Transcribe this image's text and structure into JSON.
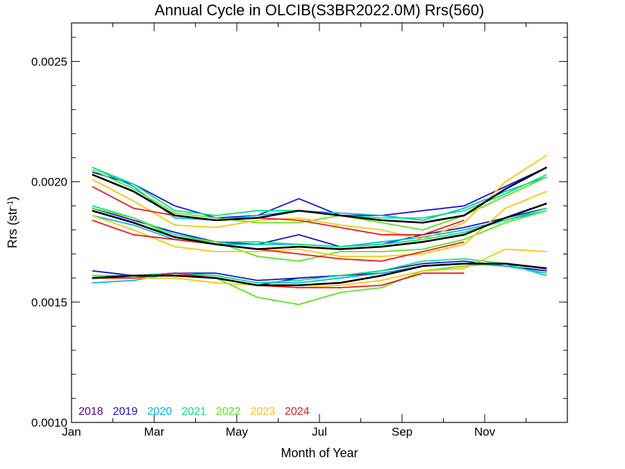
{
  "chart_data": {
    "type": "line",
    "title": "Annual Cycle in OLCIB(S3BR2022.0M) Rrs(560)",
    "xlabel": "Month of Year",
    "ylabel_main": "Rrs (str",
    "ylabel_sup": "-1",
    "ylabel_end": ")",
    "xlim": [
      0,
      12
    ],
    "ylim": [
      0.001,
      0.00266
    ],
    "x_ticks": [
      {
        "x": 0,
        "label": "Jan"
      },
      {
        "x": 2,
        "label": "Mar"
      },
      {
        "x": 4,
        "label": "May"
      },
      {
        "x": 6,
        "label": "Jul"
      },
      {
        "x": 8,
        "label": "Sep"
      },
      {
        "x": 10,
        "label": "Nov"
      }
    ],
    "y_ticks": [
      {
        "y": 0.001,
        "label": "0.0010"
      },
      {
        "y": 0.0015,
        "label": "0.0015"
      },
      {
        "y": 0.002,
        "label": "0.0020"
      },
      {
        "y": 0.0025,
        "label": "0.0025"
      }
    ],
    "legend_position": "bottom-left",
    "x": [
      0.5,
      1.5,
      2.5,
      3.5,
      4.5,
      5.5,
      6.5,
      7.5,
      8.5,
      9.5,
      10.5,
      11.5
    ],
    "series": [
      {
        "name": "2018",
        "color": "#5a0080",
        "groups": [
          [
            0.0016,
            0.00161,
            0.00162,
            0.0016,
            0.00157,
            0.0016,
            0.00161,
            0.00162,
            0.00165,
            0.00166,
            0.00165,
            0.00163
          ]
        ]
      },
      {
        "name": "2019",
        "color": "#1010e0",
        "groups": [
          [
            0.00204,
            0.00199,
            0.0019,
            0.00185,
            0.00186,
            0.00193,
            0.00186,
            0.00186,
            0.00188,
            0.0019,
            0.00198,
            0.00206
          ],
          [
            0.00189,
            0.00184,
            0.00179,
            0.00175,
            0.00174,
            0.00178,
            0.00173,
            0.00174,
            0.00178,
            0.00181,
            0.00185,
            0.00189
          ],
          [
            0.00163,
            0.00161,
            0.00162,
            0.00162,
            0.00159,
            0.0016,
            0.00161,
            0.00163,
            0.00166,
            0.00167,
            0.00165,
            0.00163
          ]
        ]
      },
      {
        "name": "2020",
        "color": "#00b4e6",
        "groups": [
          [
            0.00206,
            0.00198,
            0.00185,
            0.00184,
            0.00186,
            0.00188,
            0.00187,
            0.00186,
            0.00184,
            0.00189,
            0.00196,
            0.00202
          ],
          [
            0.00186,
            0.00182,
            0.00176,
            0.00174,
            0.00174,
            0.00174,
            0.00173,
            0.00175,
            0.00177,
            0.0018,
            0.00184,
            0.00188
          ],
          [
            0.00158,
            0.00159,
            0.00162,
            0.00161,
            0.00158,
            0.00158,
            0.0016,
            0.00162,
            0.00165,
            0.00166,
            0.00165,
            0.00162
          ]
        ]
      },
      {
        "name": "2021",
        "color": "#00e676",
        "groups": [
          [
            0.00206,
            0.00199,
            0.00188,
            0.00186,
            0.00188,
            0.00188,
            0.00186,
            0.00185,
            0.00185,
            0.00188,
            0.00195,
            0.00203
          ],
          [
            0.0019,
            0.00185,
            0.00178,
            0.00175,
            0.00175,
            0.00174,
            0.00173,
            0.00174,
            0.00176,
            0.00179,
            0.00184,
            0.00189
          ],
          [
            0.00161,
            0.00161,
            0.00162,
            0.00161,
            0.00158,
            0.00159,
            0.00161,
            0.00163,
            0.00167,
            0.00168,
            0.00166,
            0.00161
          ]
        ]
      },
      {
        "name": "2022",
        "color": "#55e51a",
        "groups": [
          [
            0.00205,
            0.00197,
            0.00187,
            0.00185,
            0.00183,
            0.00183,
            0.00186,
            0.00183,
            0.0018,
            0.00186,
            0.00194,
            0.00202
          ],
          [
            0.00189,
            0.00185,
            0.00177,
            0.00175,
            0.00169,
            0.00167,
            0.00171,
            0.00171,
            0.00172,
            0.00176,
            0.00183,
            0.00188
          ],
          [
            0.00161,
            0.00161,
            0.00161,
            0.0016,
            0.00152,
            0.00149,
            0.00154,
            0.00156,
            0.00163,
            0.00165,
            0.00166
          ]
        ]
      },
      {
        "name": "2023",
        "color": "#ffc400",
        "groups": [
          [
            0.00201,
            0.00192,
            0.00182,
            0.00181,
            0.00184,
            0.00185,
            0.00182,
            0.0018,
            0.00176,
            0.00183,
            0.002,
            0.00211
          ],
          [
            0.00186,
            0.0018,
            0.00173,
            0.00171,
            0.00171,
            0.00172,
            0.00169,
            0.00169,
            0.0017,
            0.00174,
            0.00189,
            0.00196
          ],
          [
            0.0016,
            0.0016,
            0.0016,
            0.00158,
            0.00157,
            0.00156,
            0.00157,
            0.00159,
            0.00163,
            0.00164,
            0.00172,
            0.00171
          ]
        ]
      },
      {
        "name": "2024",
        "color": "#f01414",
        "groups": [
          [
            0.00198,
            0.00189,
            0.00186,
            0.00184,
            0.00185,
            0.00184,
            0.00181,
            0.00178,
            0.00178,
            0.00184
          ],
          [
            0.00184,
            0.00178,
            0.00176,
            0.00174,
            0.00172,
            0.0017,
            0.00168,
            0.00167,
            0.00171,
            0.00175
          ],
          [
            0.0016,
            0.0016,
            0.00162,
            0.0016,
            0.00157,
            0.00156,
            0.00156,
            0.00157,
            0.00162,
            0.00162
          ]
        ]
      },
      {
        "color": "#000000",
        "groups": [
          [
            0.00203,
            0.00196,
            0.00186,
            0.00184,
            0.00185,
            0.00188,
            0.00186,
            0.00184,
            0.00183,
            0.00186,
            0.00197,
            0.00206
          ],
          [
            0.00188,
            0.00183,
            0.00177,
            0.00174,
            0.00172,
            0.00173,
            0.00172,
            0.00173,
            0.00175,
            0.00178,
            0.00185,
            0.00191
          ],
          [
            0.0016,
            0.00161,
            0.00161,
            0.0016,
            0.00157,
            0.00157,
            0.00158,
            0.00161,
            0.00165,
            0.00166,
            0.00166,
            0.00164
          ]
        ]
      }
    ]
  }
}
